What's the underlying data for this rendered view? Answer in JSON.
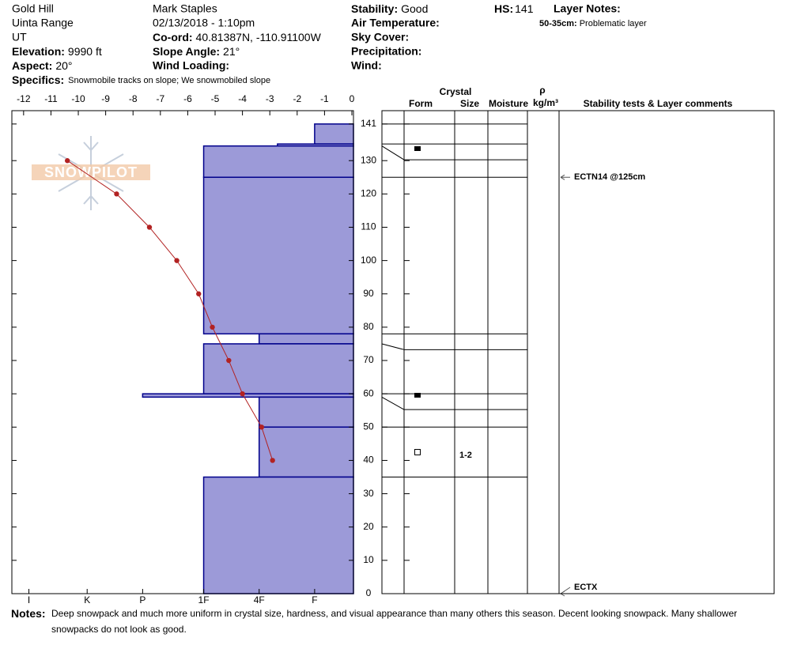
{
  "header": {
    "location": [
      "Gold Hill",
      "Uinta Range",
      "UT"
    ],
    "observer": "Mark Staples",
    "date": "02/13/2018 - 1:10pm",
    "fields": [
      {
        "label": "Elevation:",
        "value": "9990 ft"
      },
      {
        "label": "Aspect:",
        "value": "20°"
      },
      {
        "label": "Co-ord:",
        "value": "40.81387N, -110.91100W"
      },
      {
        "label": "Slope Angle:",
        "value": "21°"
      },
      {
        "label": "Wind Loading:"
      },
      {
        "label": "Stability:",
        "value": "Good"
      },
      {
        "label": "Air Temperature:"
      },
      {
        "label": "Sky Cover:"
      },
      {
        "label": "Precipitation:"
      },
      {
        "label": "Wind:"
      },
      {
        "label": "HS:",
        "value": 141
      },
      {
        "label": "Specifics:",
        "value": "Snowmobile tracks on slope; We snowmobiled slope"
      }
    ],
    "layer_notes": {
      "title": "Layer Notes:",
      "items": [
        {
          "range": "50-35cm:",
          "text": "Problematic layer"
        }
      ]
    }
  },
  "logo": "SNOWPILOT",
  "columns": {
    "crystal": "Crystal",
    "form": "Form",
    "size": "Size",
    "moisture": "Moisture",
    "density": "ρ",
    "density_unit": "kg/m³",
    "comments": "Stability tests & Layer comments"
  },
  "chart_data": {
    "type": "snowpit",
    "ylim": [
      0,
      145
    ],
    "yticks": [
      0,
      10,
      20,
      30,
      40,
      50,
      60,
      70,
      80,
      90,
      100,
      110,
      120,
      130,
      141
    ],
    "temperature": {
      "color": "#b22222",
      "xlim": [
        -12.4,
        0
      ],
      "xticks": [
        -12,
        -11,
        -10,
        -9,
        -8,
        -7,
        -6,
        -5,
        -4,
        -3,
        -2,
        -1,
        0
      ],
      "depth": [
        130,
        120,
        110,
        100,
        90,
        80,
        70,
        60,
        50,
        40
      ],
      "values": [
        -10.4,
        -8.6,
        -7.4,
        -6.4,
        -5.6,
        -5.1,
        -4.5,
        -4.0,
        -3.3,
        -2.9
      ]
    },
    "hardness": {
      "color": "#9c9ad8",
      "xlim": [
        6.457,
        0.3
      ],
      "xticks": [
        {
          "value": 6.15,
          "label": "I"
        },
        {
          "value": 5.1,
          "label": "K"
        },
        {
          "value": 4.1,
          "label": "P"
        },
        {
          "value": 3,
          "label": "1F"
        },
        {
          "value": 2,
          "label": "4F"
        },
        {
          "value": 1,
          "label": "F"
        }
      ],
      "top": [
        141,
        135,
        134.4,
        125,
        78,
        75,
        60,
        59,
        50,
        35
      ],
      "bottom": [
        135,
        134.4,
        125,
        78,
        75,
        60,
        59,
        50,
        35,
        0
      ],
      "values": [
        1,
        1.67,
        3,
        3,
        2,
        3,
        4.1,
        2,
        2,
        3
      ],
      "sizes": [
        null,
        null,
        null,
        null,
        null,
        null,
        null,
        null,
        "1-2",
        null
      ]
    },
    "stability_tests": {
      "depth": [
        125,
        0
      ],
      "labels": [
        "ECTN14 @125cm",
        "ECTX"
      ]
    }
  },
  "notes": {
    "label": "Notes:",
    "text": "Deep snowpack and much more uniform in crystal size, hardness, and visual appearance than many others this season. Decent looking snowpack. Many shallower snowpacks do not look as good."
  }
}
